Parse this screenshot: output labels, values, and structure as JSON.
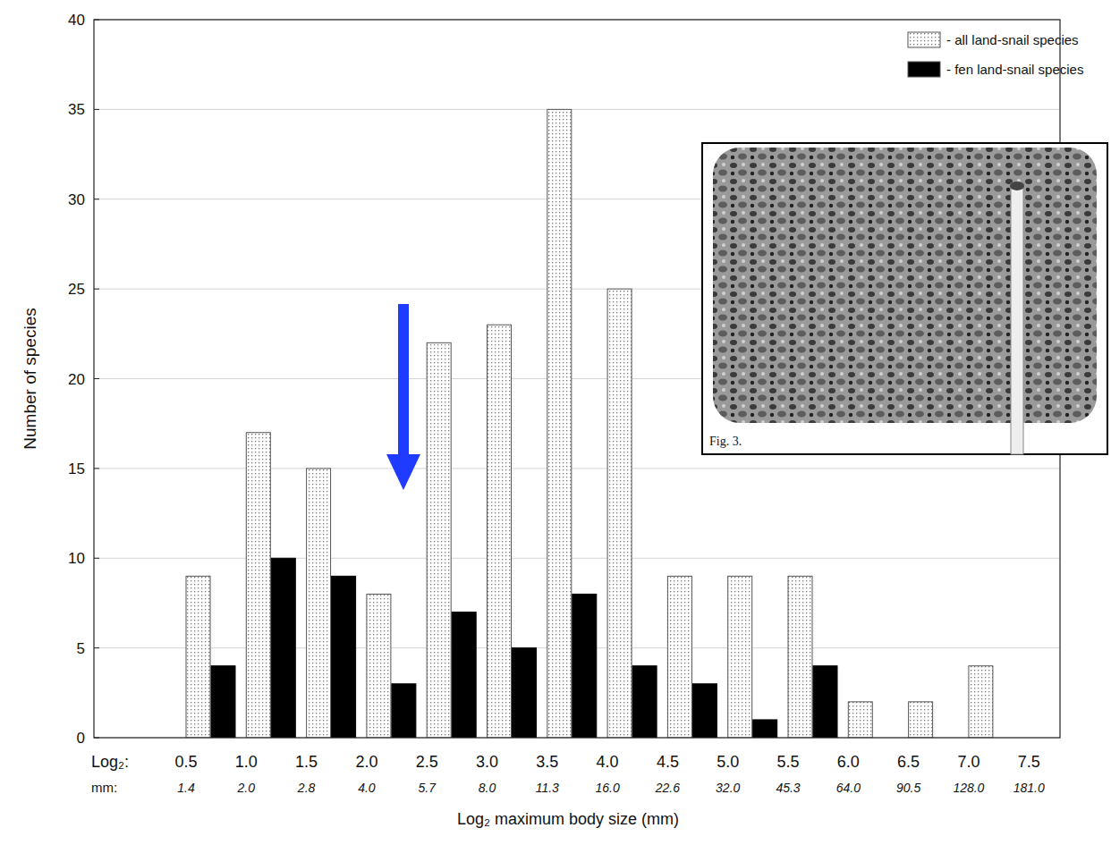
{
  "chart_data": {
    "type": "bar",
    "categories": [
      "0.5",
      "1.0",
      "1.5",
      "2.0",
      "2.5",
      "3.0",
      "3.5",
      "4.0",
      "4.5",
      "5.0",
      "5.5",
      "6.0",
      "6.5",
      "7.0",
      "7.5"
    ],
    "category_sublabels": [
      "1.4",
      "2.0",
      "2.8",
      "4.0",
      "5.7",
      "8.0",
      "11.3",
      "16.0",
      "22.6",
      "32.0",
      "45.3",
      "64.0",
      "90.5",
      "128.0",
      "181.0"
    ],
    "category_row_labels": [
      "Log₂:",
      "mm:"
    ],
    "x_label": "Log₂ maximum body size (mm)",
    "y_label": "Number of species",
    "series": [
      {
        "name": "- all land-snail species",
        "color": "#e6e6e6",
        "values": [
          9,
          17,
          15,
          8,
          22,
          23,
          35,
          25,
          9,
          9,
          9,
          2,
          2,
          4,
          0
        ]
      },
      {
        "name": "- fen land-snail species",
        "color": "#000000",
        "values": [
          4,
          10,
          9,
          3,
          7,
          5,
          8,
          4,
          3,
          1,
          4,
          0,
          0,
          0,
          0
        ]
      }
    ],
    "ylim": [
      0,
      40
    ],
    "yticks": [
      0,
      5,
      10,
      15,
      20,
      25,
      30,
      35,
      40
    ],
    "grid": true,
    "legend": "top-right",
    "inset_label": "Fig. 3."
  }
}
